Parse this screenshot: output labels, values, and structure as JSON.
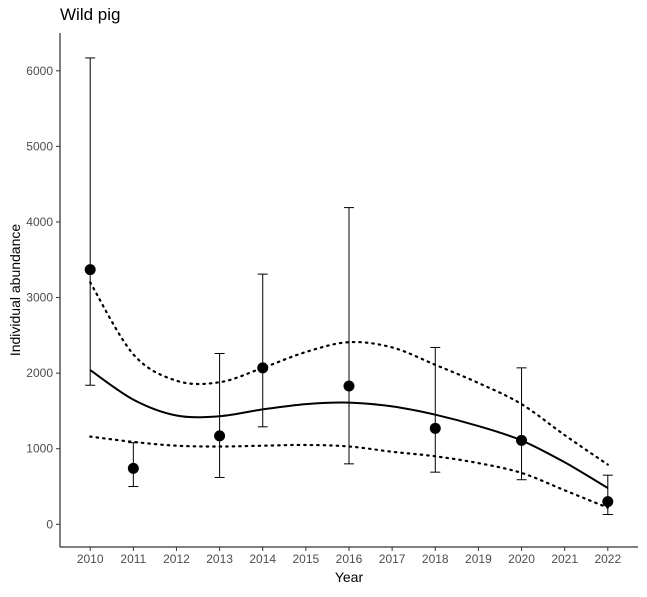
{
  "chart_data": {
    "type": "scatter",
    "title": "Wild pig",
    "xlabel": "Year",
    "ylabel": "Individual abundance",
    "xlim": [
      2009.3,
      2022.7
    ],
    "ylim": [
      -300,
      6500
    ],
    "xticks": [
      2010,
      2011,
      2012,
      2013,
      2014,
      2015,
      2016,
      2017,
      2018,
      2019,
      2020,
      2021,
      2022
    ],
    "yticks": [
      0,
      1000,
      2000,
      3000,
      4000,
      5000,
      6000
    ],
    "grid": false,
    "points": [
      {
        "x": 2010,
        "y": 3370,
        "lower": 1840,
        "upper": 6170
      },
      {
        "x": 2011,
        "y": 740,
        "lower": 500,
        "upper": 1080
      },
      {
        "x": 2013,
        "y": 1170,
        "lower": 620,
        "upper": 2260
      },
      {
        "x": 2014,
        "y": 2070,
        "lower": 1290,
        "upper": 3310
      },
      {
        "x": 2016,
        "y": 1830,
        "lower": 800,
        "upper": 4190
      },
      {
        "x": 2018,
        "y": 1270,
        "lower": 690,
        "upper": 2340
      },
      {
        "x": 2020,
        "y": 1110,
        "lower": 590,
        "upper": 2070
      },
      {
        "x": 2022,
        "y": 300,
        "lower": 130,
        "upper": 650
      }
    ],
    "fit_line": {
      "style": "solid",
      "x": [
        2010,
        2011,
        2012,
        2013,
        2014,
        2015,
        2016,
        2017,
        2018,
        2019,
        2020,
        2021,
        2022
      ],
      "y": [
        2040,
        1650,
        1440,
        1430,
        1520,
        1590,
        1610,
        1560,
        1450,
        1300,
        1110,
        820,
        480
      ]
    },
    "ci_upper": {
      "style": "dotted",
      "x": [
        2010,
        2011,
        2012,
        2013,
        2014,
        2015,
        2016,
        2017,
        2018,
        2019,
        2020,
        2021,
        2022
      ],
      "y": [
        3200,
        2250,
        1900,
        1880,
        2070,
        2280,
        2410,
        2340,
        2110,
        1870,
        1590,
        1180,
        790
      ]
    },
    "ci_lower": {
      "style": "dotted",
      "x": [
        2010,
        2011,
        2012,
        2013,
        2014,
        2015,
        2016,
        2017,
        2018,
        2019,
        2020,
        2021,
        2022
      ],
      "y": [
        1160,
        1090,
        1040,
        1030,
        1040,
        1050,
        1030,
        960,
        900,
        810,
        680,
        450,
        220
      ]
    }
  }
}
